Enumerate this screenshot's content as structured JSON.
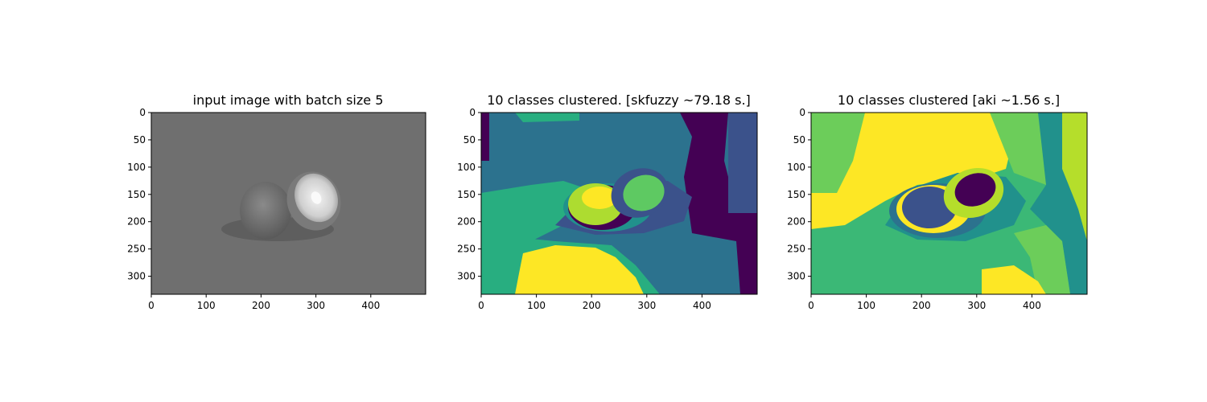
{
  "chart_data": [
    {
      "type": "heatmap",
      "title": "input image with batch size 5",
      "colormap": "gray",
      "xlim": [
        0,
        500
      ],
      "ylim": [
        0,
        333
      ],
      "xticks": [
        0,
        100,
        200,
        300,
        400
      ],
      "yticks": [
        0,
        50,
        100,
        150,
        200,
        250,
        300
      ],
      "background_color": "#6f6f6f"
    },
    {
      "type": "heatmap",
      "title": "10 classes clustered. [skfuzzy ~79.18 s.]",
      "colormap": "viridis",
      "n_classes": 10,
      "xlim": [
        0,
        500
      ],
      "ylim": [
        0,
        333
      ],
      "xticks": [
        0,
        100,
        200,
        300,
        400
      ],
      "yticks": [
        0,
        50,
        100,
        150,
        200,
        250,
        300
      ],
      "colors": [
        "#440154",
        "#3b528b",
        "#2c728e",
        "#21918c",
        "#28ae80",
        "#5ec962",
        "#addc30",
        "#fde725"
      ]
    },
    {
      "type": "heatmap",
      "title": "10 classes clustered [aki ~1.56 s.]",
      "colormap": "viridis",
      "n_classes": 10,
      "xlim": [
        0,
        500
      ],
      "ylim": [
        0,
        333
      ],
      "xticks": [
        0,
        100,
        200,
        300,
        400
      ],
      "yticks": [
        0,
        50,
        100,
        150,
        200,
        250,
        300
      ],
      "colors": [
        "#440154",
        "#3b528b",
        "#2c728e",
        "#21918c",
        "#3bb876",
        "#6ccd5a",
        "#b5de2b",
        "#fde725"
      ]
    }
  ]
}
